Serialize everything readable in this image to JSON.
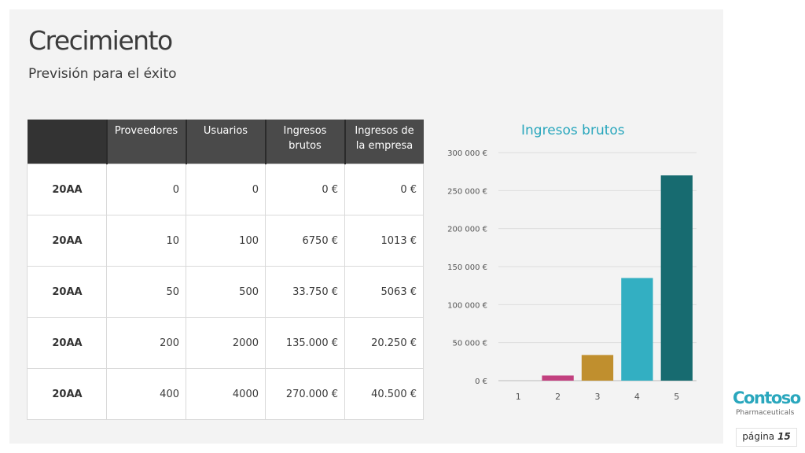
{
  "slide": {
    "title": "Crecimiento",
    "subtitle": "Previsión para el éxito"
  },
  "table": {
    "headers": [
      "",
      "Proveedores",
      "Usuarios",
      "Ingresos brutos",
      "Ingresos de la empresa"
    ],
    "rows": [
      [
        "20AA",
        "0",
        "0",
        "0 €",
        "0 €"
      ],
      [
        "20AA",
        "10",
        "100",
        "6750 €",
        "1013 €"
      ],
      [
        "20AA",
        "50",
        "500",
        "33.750 €",
        "5063 €"
      ],
      [
        "20AA",
        "200",
        "2000",
        "135.000 €",
        "20.250 €"
      ],
      [
        "20AA",
        "400",
        "4000",
        "270.000 €",
        "40.500 €"
      ]
    ]
  },
  "chart_data": {
    "type": "bar",
    "title": "Ingresos brutos",
    "categories": [
      "1",
      "2",
      "3",
      "4",
      "5"
    ],
    "values": [
      0,
      6750,
      33750,
      135000,
      270000
    ],
    "colors": [
      "#2aa7bd",
      "#c2407f",
      "#c08f2e",
      "#33afc2",
      "#176b70"
    ],
    "ylim": [
      0,
      300000
    ],
    "yticks": [
      {
        "value": 0,
        "label": "0 €"
      },
      {
        "value": 50000,
        "label": "50 000 €"
      },
      {
        "value": 100000,
        "label": "100 000 €"
      },
      {
        "value": 150000,
        "label": "150 000 €"
      },
      {
        "value": 200000,
        "label": "200 000 €"
      },
      {
        "value": 250000,
        "label": "250 000 €"
      },
      {
        "value": 300000,
        "label": "300 000 €"
      }
    ],
    "grid": true,
    "legend": "none"
  },
  "brand": {
    "name": "Contoso",
    "tagline": "Pharmaceuticals",
    "accent": "#2aa7bd"
  },
  "footer": {
    "page_word": "página",
    "page_number": "15"
  }
}
